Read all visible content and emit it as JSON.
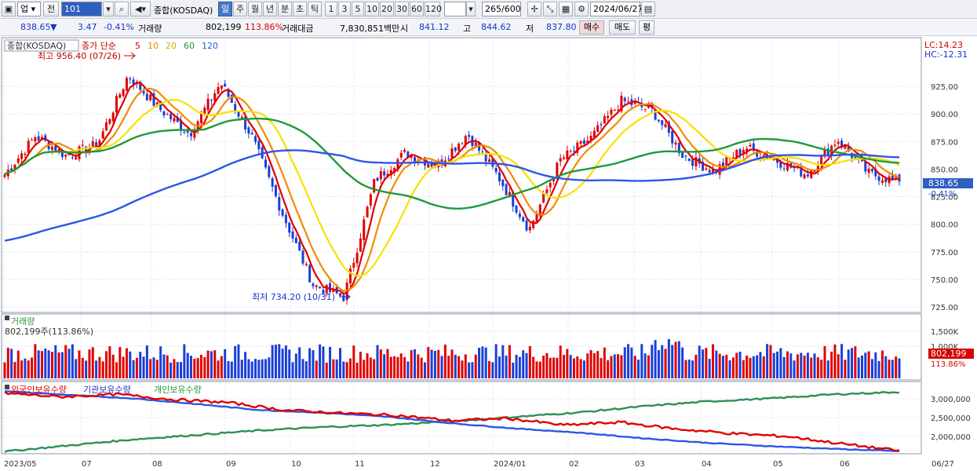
{
  "toolbar": {
    "market": "업",
    "prev_label": "전",
    "code": "101",
    "index_name": "종합(KOSDAQ)",
    "periods": [
      "일",
      "주",
      "월",
      "년",
      "분",
      "초",
      "틱"
    ],
    "selected_period": "일",
    "intervals": [
      "1",
      "3",
      "5",
      "10",
      "20",
      "30",
      "60",
      "120"
    ],
    "count": "265/600",
    "date": "2024/06/27"
  },
  "quote": {
    "price": "838.65",
    "arrow": "▼",
    "change": "3.47",
    "change_pct": "-0.41%",
    "volume_label": "거래량",
    "volume": "802,199",
    "volume_ratio": "113.86%",
    "amount_label": "거래대금",
    "amount": "7,830,851백만",
    "open_label": "시",
    "open": "841.12",
    "high_label": "고",
    "high": "844.62",
    "low_label": "저",
    "low": "837.80",
    "buy_label": "매수",
    "sell_label": "매도",
    "eval_label": "평"
  },
  "price_panel": {
    "title": "종합(KOSDAQ)",
    "ma_label": "종가 단순",
    "ma_periods": [
      "5",
      "10",
      "20",
      "60",
      "120"
    ],
    "ma_colors": [
      "#e00000",
      "#f08c00",
      "#f7e000",
      "#1f9a3a",
      "#2d57e6"
    ],
    "lc": "LC:14.23",
    "hc": "HC:-12.31",
    "max_label": "최고 956.40 (07/26)",
    "min_label": "최저 734.20 (10/31)",
    "current_price": "838.65",
    "current_pct": "-0.41%"
  },
  "volume_panel": {
    "title": "거래량",
    "subtitle": "802,199주(113.86%)",
    "current": "802,199",
    "current_pct": "113.86%"
  },
  "holding_panel": {
    "foreign_label": "외국인보유수량",
    "inst_label": "기관보유수량",
    "indiv_label": "개인보유수량"
  },
  "chart_data": {
    "type": "line",
    "x": [
      "2023/05",
      "07",
      "08",
      "09",
      "10",
      "11",
      "12",
      "2024/01",
      "02",
      "03",
      "04",
      "05",
      "06",
      "06/27"
    ],
    "y_ticks": [
      "925.00",
      "900.00",
      "875.00",
      "850.00",
      "825.00",
      "800.00",
      "775.00",
      "750.00",
      "725.00"
    ],
    "ylim": [
      720,
      965
    ],
    "close_anchors": [
      845,
      880,
      862,
      872,
      935,
      905,
      882,
      928,
      880,
      810,
      745,
      734,
      840,
      865,
      853,
      882,
      843,
      795,
      858,
      878,
      912,
      903,
      862,
      848,
      870,
      858,
      845,
      877,
      846,
      838.65
    ],
    "volume_ticks": [
      "1,500K",
      "1,000K"
    ],
    "holding_ticks": [
      "3,000,000",
      "2,500,000",
      "2,000,000"
    ],
    "foreign_anchors": [
      3150000,
      3050000,
      3120000,
      2980000,
      2900000,
      2700000,
      2620000,
      2560000,
      2420000,
      2480000,
      2300000,
      2380000,
      2200000,
      2080000,
      2000000,
      1800000,
      1620000
    ],
    "inst_anchors": [
      3200000,
      3100000,
      3010000,
      2860000,
      2700000,
      2630000,
      2520000,
      2350000,
      2210000,
      2100000,
      1950000,
      1830000,
      1740000,
      1670000,
      1610000
    ],
    "indiv_anchors": [
      1600000,
      1760000,
      1920000,
      2040000,
      2160000,
      2250000,
      2310000,
      2400000,
      2520000,
      2640000,
      2800000,
      2930000,
      3010000,
      3120000,
      3180000
    ]
  }
}
